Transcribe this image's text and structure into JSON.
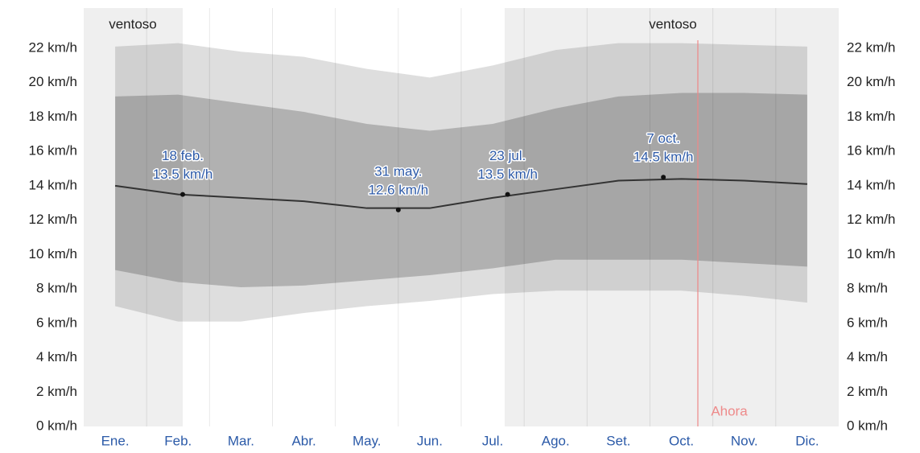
{
  "chart_data": {
    "type": "line",
    "categories": [
      "Ene.",
      "Feb.",
      "Mar.",
      "Abr.",
      "May.",
      "Jun.",
      "Jul.",
      "Ago.",
      "Set.",
      "Oct.",
      "Nov.",
      "Dic."
    ],
    "series": [
      {
        "color": "#333333",
        "values": [
          14.0,
          13.5,
          13.3,
          13.1,
          12.7,
          12.7,
          13.3,
          13.8,
          14.3,
          14.4,
          14.3,
          14.1
        ]
      },
      {
        "color": "#b0b0b0",
        "values": [
          19.2,
          19.3,
          18.8,
          18.3,
          17.6,
          17.2,
          17.6,
          18.5,
          19.2,
          19.4,
          19.4,
          19.3
        ]
      },
      {
        "color": "#b0b0b0",
        "values": [
          9.1,
          8.4,
          8.1,
          8.2,
          8.5,
          8.8,
          9.2,
          9.7,
          9.7,
          9.7,
          9.5,
          9.3
        ]
      },
      {
        "color": "#dcdcdc",
        "values": [
          22.1,
          22.3,
          21.8,
          21.5,
          20.8,
          20.3,
          21.0,
          21.9,
          22.3,
          22.3,
          22.2,
          22.1
        ]
      },
      {
        "color": "#dcdcdc",
        "values": [
          7.0,
          6.1,
          6.1,
          6.6,
          7.0,
          7.3,
          7.7,
          7.9,
          7.9,
          7.9,
          7.6,
          7.2
        ]
      }
    ],
    "annotations": [
      {
        "date": "18 feb.",
        "value": 13.5,
        "value_label": "13.5 km/h"
      },
      {
        "date": "31 may.",
        "value": 12.6,
        "value_label": "12.6 km/h"
      },
      {
        "date": "23 jul.",
        "value": 13.5,
        "value_label": "13.5 km/h"
      },
      {
        "date": "7 oct.",
        "value": 14.5,
        "value_label": "14.5 km/h"
      }
    ],
    "regions": [
      "ventoso",
      "ventoso"
    ],
    "now_label": "Ahora",
    "ylim": [
      0,
      22
    ],
    "yticks": [
      {
        "value": 0,
        "label": "0 km/h"
      },
      {
        "value": 2,
        "label": "2 km/h"
      },
      {
        "value": 4,
        "label": "4 km/h"
      },
      {
        "value": 6,
        "label": "6 km/h"
      },
      {
        "value": 8,
        "label": "8 km/h"
      },
      {
        "value": 10,
        "label": "10 km/h"
      },
      {
        "value": 12,
        "label": "12 km/h"
      },
      {
        "value": 14,
        "label": "14 km/h"
      },
      {
        "value": 16,
        "label": "16 km/h"
      },
      {
        "value": 18,
        "label": "18 km/h"
      },
      {
        "value": 20,
        "label": "20 km/h"
      },
      {
        "value": 22,
        "label": "22 km/h"
      }
    ]
  }
}
